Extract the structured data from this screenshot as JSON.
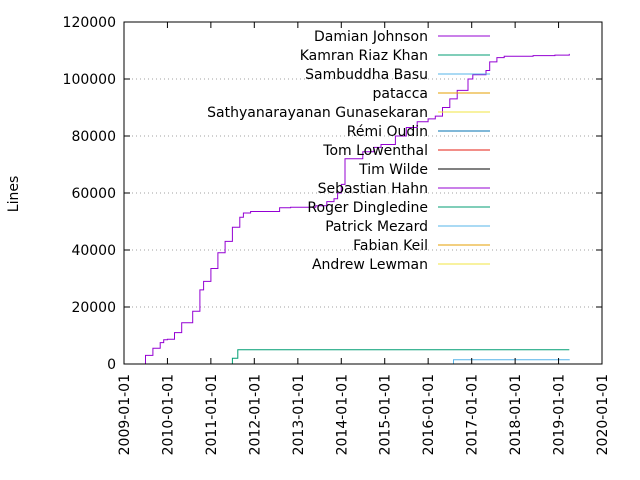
{
  "chart_data": {
    "type": "line",
    "ylabel": "Lines",
    "xlabel": "",
    "title": "",
    "ylim": [
      0,
      120000
    ],
    "yticks": [
      0,
      20000,
      40000,
      60000,
      80000,
      100000,
      120000
    ],
    "xlim": [
      "2009-01-01",
      "2020-01-01"
    ],
    "xticks": [
      "2009-01-01",
      "2010-01-01",
      "2011-01-01",
      "2012-01-01",
      "2013-01-01",
      "2014-01-01",
      "2015-01-01",
      "2016-01-01",
      "2017-01-01",
      "2018-01-01",
      "2019-01-01",
      "2020-01-01"
    ],
    "grid": true,
    "legend_position": "top-right",
    "series": [
      {
        "name": "Damian Johnson",
        "color": "#9400d3",
        "x": [
          "2009-06-10",
          "2009-07-01",
          "2009-09-01",
          "2009-11-01",
          "2009-12-01",
          "2010-01-01",
          "2010-03-01",
          "2010-05-01",
          "2010-08-01",
          "2010-10-01",
          "2010-11-01",
          "2011-01-01",
          "2011-03-01",
          "2011-05-01",
          "2011-07-01",
          "2011-09-01",
          "2011-10-01",
          "2011-12-01",
          "2012-02-01",
          "2012-06-01",
          "2012-08-01",
          "2012-11-01",
          "2013-06-01",
          "2013-09-01",
          "2013-11-01",
          "2013-12-01",
          "2014-01-01",
          "2014-02-01",
          "2014-07-01",
          "2014-10-01",
          "2014-12-01",
          "2015-04-01",
          "2015-07-01",
          "2015-10-01",
          "2016-01-01",
          "2016-03-01",
          "2016-05-01",
          "2016-07-01",
          "2016-09-01",
          "2016-12-01",
          "2017-01-10",
          "2017-05-01",
          "2017-06-01",
          "2017-08-01",
          "2017-10-01",
          "2018-06-01",
          "2018-12-01",
          "2019-04-01"
        ],
        "y": [
          0,
          3000,
          5500,
          7500,
          8500,
          8700,
          11000,
          14500,
          18500,
          26000,
          29000,
          33500,
          39000,
          43000,
          48000,
          51500,
          53000,
          53500,
          53500,
          53500,
          54800,
          55000,
          55500,
          57000,
          58000,
          60000,
          63000,
          72000,
          74500,
          76000,
          77000,
          80000,
          83000,
          85000,
          86000,
          87000,
          90000,
          93000,
          96000,
          100000,
          101500,
          103000,
          106000,
          107500,
          108000,
          108200,
          108400,
          108800
        ]
      },
      {
        "name": "Kamran Riaz Khan",
        "color": "#009e73",
        "x": [
          "2011-06-01",
          "2011-07-01",
          "2011-08-15",
          "2019-04-01"
        ],
        "y": [
          0,
          2000,
          5000,
          5000
        ]
      },
      {
        "name": "Sambuddha Basu",
        "color": "#56b4e9",
        "x": [
          "2016-07-01",
          "2016-08-01",
          "2019-04-01"
        ],
        "y": [
          0,
          1500,
          1600
        ]
      },
      {
        "name": "patacca",
        "color": "#e69f00",
        "x": [],
        "y": []
      },
      {
        "name": "Sathyanarayanan Gunasekaran",
        "color": "#f0e442",
        "x": [],
        "y": []
      },
      {
        "name": "Rémi Oudin",
        "color": "#0072b2",
        "x": [],
        "y": []
      },
      {
        "name": "Tom Lowenthal",
        "color": "#e51e10",
        "x": [],
        "y": []
      },
      {
        "name": "Tim Wilde",
        "color": "#000000",
        "x": [],
        "y": []
      },
      {
        "name": "Sebastian Hahn",
        "color": "#9400d3",
        "x": [],
        "y": []
      },
      {
        "name": "Roger Dingledine",
        "color": "#009e73",
        "x": [],
        "y": []
      },
      {
        "name": "Patrick Mezard",
        "color": "#56b4e9",
        "x": [],
        "y": []
      },
      {
        "name": "Fabian Keil",
        "color": "#e69f00",
        "x": [],
        "y": []
      },
      {
        "name": "Andrew Lewman",
        "color": "#f0e442",
        "x": [],
        "y": []
      }
    ]
  }
}
